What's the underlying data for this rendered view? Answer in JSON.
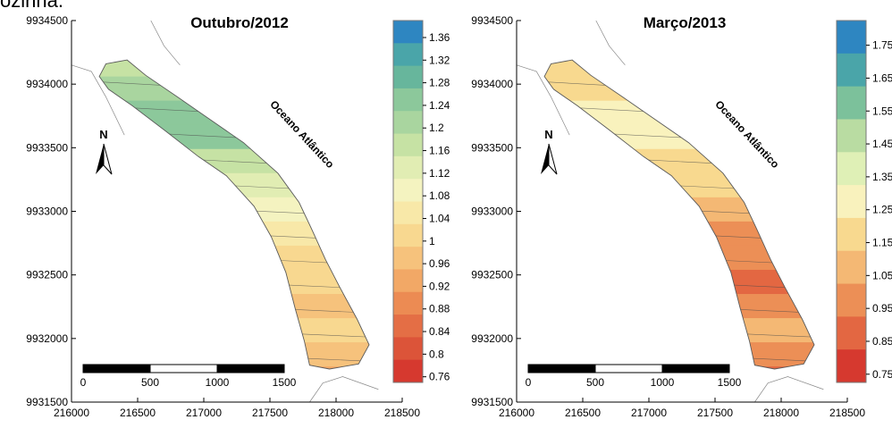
{
  "page_top_text": "ozinha.",
  "colors": {
    "outline": "#5a5a5a",
    "contour_line": "#4a4a4a",
    "scale_black": "#000000",
    "scale_white": "#ffffff"
  },
  "chart_data": [
    {
      "type": "heatmap",
      "title": "Outubro/2012",
      "annotation": "Oceano Atlântico",
      "north_label": "N",
      "xlim": [
        216000,
        218500
      ],
      "ylim": [
        9931500,
        9934500
      ],
      "x_ticks": [
        "216000",
        "216500",
        "217000",
        "217500",
        "218000",
        "218500"
      ],
      "y_ticks": [
        "9931500",
        "9932000",
        "9932500",
        "9933000",
        "9933500",
        "9934000",
        "9934500"
      ],
      "scale_bar": {
        "labels": [
          "0",
          "500",
          "1000",
          "1500"
        ]
      },
      "legend": {
        "levels": [
          "1.36",
          "1.32",
          "1.28",
          "1.24",
          "1.2",
          "1.16",
          "1.12",
          "1.08",
          "1.04",
          "1",
          "0.96",
          "0.92",
          "0.88",
          "0.84",
          "0.8",
          "0.76"
        ],
        "colors": [
          "#2e86c1",
          "#4aa5a9",
          "#67b69c",
          "#8cc89b",
          "#a9d59f",
          "#c6e2a4",
          "#e1edb3",
          "#f4f3c0",
          "#f8e8a8",
          "#f8d890",
          "#f6c27c",
          "#f2a866",
          "#ec8b53",
          "#e46e45",
          "#dc5439",
          "#d6392f"
        ]
      },
      "grid": false
    },
    {
      "type": "heatmap",
      "title": "Março/2013",
      "annotation": "Oceano Atlântico",
      "north_label": "N",
      "xlim": [
        216000,
        218500
      ],
      "ylim": [
        9931500,
        9934500
      ],
      "x_ticks": [
        "216000",
        "216500",
        "217000",
        "217500",
        "218000",
        "218500"
      ],
      "y_ticks": [
        "9931500",
        "9932000",
        "9932500",
        "9933000",
        "9933500",
        "9934000",
        "9934500"
      ],
      "scale_bar": {
        "labels": [
          "0",
          "500",
          "1000",
          "1500"
        ]
      },
      "legend": {
        "levels": [
          "1.75",
          "1.65",
          "1.55",
          "1.45",
          "1.35",
          "1.25",
          "1.15",
          "1.05",
          "0.95",
          "0.85",
          "0.75"
        ],
        "colors": [
          "#2e86c1",
          "#4aa5a9",
          "#7cc19b",
          "#b9dca2",
          "#dff0b6",
          "#f9f2bd",
          "#f8d98f",
          "#f4b874",
          "#ec8f56",
          "#e36742",
          "#d6392f"
        ]
      },
      "grid": false
    }
  ]
}
